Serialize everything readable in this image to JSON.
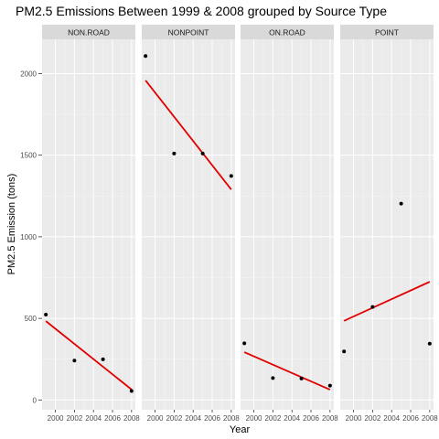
{
  "chart_data": {
    "type": "scatter",
    "title": "PM2.5 Emissions Between 1999 & 2008 grouped by Source Type",
    "xlabel": "Year",
    "ylabel": "PM2.5 Emission (tons)",
    "xlim": [
      1998.6,
      2008.4
    ],
    "ylim": [
      -60,
      2210
    ],
    "x_ticks": [
      2000,
      2002,
      2004,
      2006,
      2008
    ],
    "x_tick_labels": [
      "2000",
      "2002",
      "2004",
      "2006",
      "2008"
    ],
    "y_ticks": [
      0,
      500,
      1000,
      1500,
      2000
    ],
    "y_tick_labels": [
      "0",
      "500",
      "1000",
      "1500",
      "2000"
    ],
    "grid": true,
    "point_color": "#000000",
    "fit_line_color": "#e00000",
    "panel_background": "#ebebeb",
    "strip_background": "#d9d9d9",
    "panels": [
      {
        "name": "NON.ROAD",
        "points": [
          {
            "x": 1999,
            "y": 523
          },
          {
            "x": 2002,
            "y": 241
          },
          {
            "x": 2005,
            "y": 249
          },
          {
            "x": 2008,
            "y": 55
          }
        ],
        "fit": {
          "x": [
            1999,
            2008
          ],
          "y": [
            483,
            64
          ]
        }
      },
      {
        "name": "NONPOINT",
        "points": [
          {
            "x": 1999,
            "y": 2108
          },
          {
            "x": 2002,
            "y": 1510
          },
          {
            "x": 2005,
            "y": 1510
          },
          {
            "x": 2008,
            "y": 1373
          }
        ],
        "fit": {
          "x": [
            1999,
            2008
          ],
          "y": [
            1958,
            1290
          ]
        }
      },
      {
        "name": "ON.ROAD",
        "points": [
          {
            "x": 1999,
            "y": 347
          },
          {
            "x": 2002,
            "y": 134
          },
          {
            "x": 2005,
            "y": 131
          },
          {
            "x": 2008,
            "y": 88
          }
        ],
        "fit": {
          "x": [
            1999,
            2008
          ],
          "y": [
            293,
            63
          ]
        }
      },
      {
        "name": "POINT",
        "points": [
          {
            "x": 1999,
            "y": 297
          },
          {
            "x": 2002,
            "y": 570
          },
          {
            "x": 2005,
            "y": 1203
          },
          {
            "x": 2008,
            "y": 345
          }
        ],
        "fit": {
          "x": [
            1999,
            2008
          ],
          "y": [
            485,
            724
          ]
        }
      }
    ]
  }
}
